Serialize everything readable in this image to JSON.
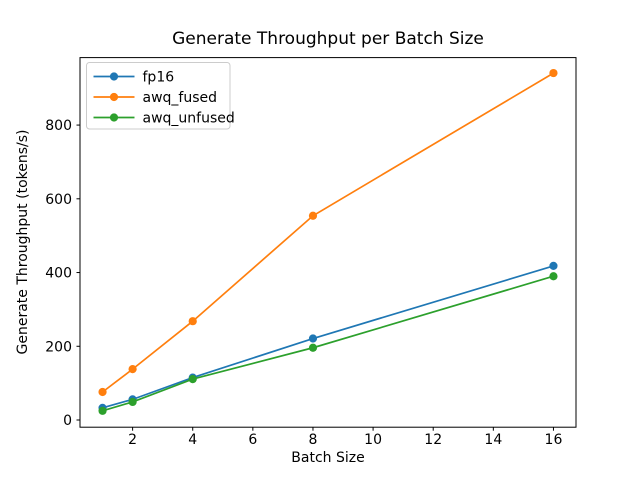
{
  "chart_data": {
    "type": "line",
    "title": "Generate Throughput per Batch Size",
    "xlabel": "Batch Size",
    "ylabel": "Generate Throughput (tokens/s)",
    "x": [
      1,
      2,
      4,
      8,
      16
    ],
    "series": [
      {
        "name": "fp16",
        "color": "#1f77b4",
        "values": [
          33,
          56,
          115,
          221,
          418
        ]
      },
      {
        "name": "awq_fused",
        "color": "#ff7f0e",
        "values": [
          76,
          138,
          268,
          554,
          941
        ]
      },
      {
        "name": "awq_unfused",
        "color": "#2ca02c",
        "values": [
          25,
          49,
          111,
          196,
          390
        ]
      }
    ],
    "xticks": [
      2,
      4,
      6,
      8,
      10,
      12,
      14,
      16
    ],
    "yticks": [
      0,
      200,
      400,
      600,
      800
    ],
    "xlim": [
      0.25,
      16.75
    ],
    "ylim": [
      -19.5,
      983
    ],
    "grid": false,
    "marker": "o",
    "legend_position": "upper left",
    "background_color": "#ffffff",
    "spine_color": "#000000",
    "legend_border_color": "#cccccc"
  }
}
